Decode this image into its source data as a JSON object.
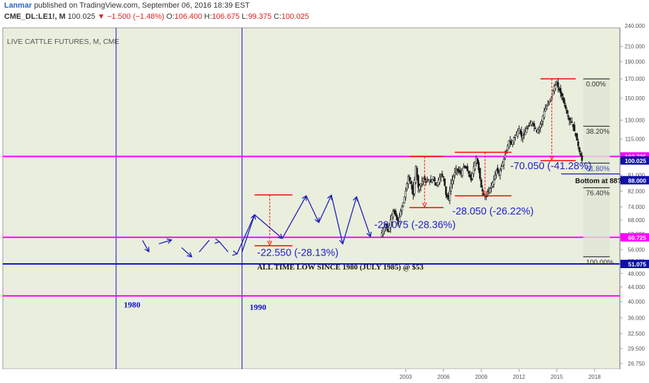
{
  "header": {
    "author": "Lanmar",
    "published": "published on TradingView.com, September 06, 2016 18:39 EST",
    "symbol": "CME_DL:LE1!, M",
    "last": "100.025",
    "change": "▼ −1.500 (−1.48%)",
    "o_label": "O:",
    "o_value": "106.400",
    "h_label": "H:",
    "h_value": "106.675",
    "l_label": "L:",
    "l_value": "99.375",
    "c_label": "C:",
    "c_value": "100.025"
  },
  "chart_title": "LIVE CATTLE FUTURES, M, CME",
  "colors": {
    "bg": "#e9eedd",
    "magenta": "#ff00ff",
    "blue": "#1212c8",
    "red": "#ff0000",
    "candle": "#1a1a1a",
    "fib": "#6b7280",
    "axis_text": "#555555"
  },
  "chart_data": {
    "type": "candlestick",
    "scale": "log",
    "ylim": [
      26.75,
      240
    ],
    "yticks": [
      26.75,
      29.5,
      32.5,
      36,
      40,
      44,
      48,
      52,
      56,
      62,
      68,
      74,
      82,
      91,
      100,
      115,
      130,
      150,
      170,
      190,
      210
    ],
    "ytick_labels": [
      "26.750",
      "29.500",
      "32.500",
      "36.000",
      "40.000",
      "44.000",
      "48.000",
      "52.000",
      "56.000",
      "62.000",
      "68.000",
      "74.000",
      "82.000",
      "91.000",
      "100.000",
      "115.000",
      "130.000",
      "150.000",
      "170.000",
      "190.000",
      "210.000"
    ],
    "top_axis_label": "240.000",
    "x_start": 1971.0,
    "x_end": 2020.0,
    "xticks": [
      2003,
      2006,
      2009,
      2012,
      2015,
      2018
    ],
    "xtick_labels": [
      "2003",
      "2006",
      "2009",
      "2012",
      "2015",
      "2018"
    ],
    "price_series": [
      [
        2001.0,
        61
      ],
      [
        2001.2,
        64
      ],
      [
        2001.4,
        66
      ],
      [
        2001.6,
        63
      ],
      [
        2001.8,
        68
      ],
      [
        2002.0,
        72
      ],
      [
        2002.2,
        70
      ],
      [
        2002.4,
        66
      ],
      [
        2002.6,
        72
      ],
      [
        2002.8,
        76
      ],
      [
        2003.0,
        82
      ],
      [
        2003.2,
        90
      ],
      [
        2003.4,
        86
      ],
      [
        2003.6,
        80
      ],
      [
        2003.8,
        96
      ],
      [
        2004.0,
        84
      ],
      [
        2004.2,
        86
      ],
      [
        2004.4,
        89
      ],
      [
        2004.6,
        87
      ],
      [
        2004.8,
        88
      ],
      [
        2005.0,
        87
      ],
      [
        2005.2,
        90
      ],
      [
        2005.4,
        85
      ],
      [
        2005.6,
        88
      ],
      [
        2005.8,
        91
      ],
      [
        2006.0,
        90
      ],
      [
        2006.2,
        80
      ],
      [
        2006.4,
        78
      ],
      [
        2006.6,
        86
      ],
      [
        2006.8,
        90
      ],
      [
        2007.0,
        95
      ],
      [
        2007.2,
        93
      ],
      [
        2007.4,
        92
      ],
      [
        2007.6,
        96
      ],
      [
        2007.8,
        95
      ],
      [
        2008.0,
        92
      ],
      [
        2008.2,
        88
      ],
      [
        2008.4,
        96
      ],
      [
        2008.6,
        102
      ],
      [
        2008.8,
        94
      ],
      [
        2009.0,
        84
      ],
      [
        2009.2,
        80
      ],
      [
        2009.4,
        79
      ],
      [
        2009.6,
        82
      ],
      [
        2009.8,
        85
      ],
      [
        2010.0,
        88
      ],
      [
        2010.2,
        94
      ],
      [
        2010.4,
        92
      ],
      [
        2010.6,
        96
      ],
      [
        2010.8,
        101
      ],
      [
        2011.0,
        106
      ],
      [
        2011.2,
        114
      ],
      [
        2011.4,
        111
      ],
      [
        2011.6,
        116
      ],
      [
        2011.8,
        119
      ],
      [
        2012.0,
        123
      ],
      [
        2012.2,
        117
      ],
      [
        2012.4,
        118
      ],
      [
        2012.6,
        123
      ],
      [
        2012.8,
        125
      ],
      [
        2013.0,
        129
      ],
      [
        2013.2,
        125
      ],
      [
        2013.4,
        121
      ],
      [
        2013.6,
        124
      ],
      [
        2013.8,
        129
      ],
      [
        2014.0,
        138
      ],
      [
        2014.2,
        142
      ],
      [
        2014.4,
        147
      ],
      [
        2014.6,
        152
      ],
      [
        2014.8,
        162
      ],
      [
        2015.0,
        164
      ],
      [
        2015.2,
        158
      ],
      [
        2015.4,
        152
      ],
      [
        2015.6,
        145
      ],
      [
        2015.8,
        136
      ],
      [
        2016.0,
        130
      ],
      [
        2016.2,
        128
      ],
      [
        2016.4,
        121
      ],
      [
        2016.6,
        114
      ],
      [
        2016.8,
        106
      ],
      [
        2017.0,
        100
      ]
    ],
    "horizontal_lines": [
      {
        "name": "magenta-line-102",
        "y": 102.725,
        "color": "magenta"
      },
      {
        "name": "magenta-line-60",
        "y": 60.725,
        "color": "magenta"
      },
      {
        "name": "magenta-line-41",
        "y": 41.5,
        "color": "magenta"
      },
      {
        "name": "blue-line-51",
        "y": 51.075,
        "color": "blue"
      }
    ],
    "vertical_lines": [
      1980,
      1990
    ],
    "year_labels": [
      {
        "text": "1980",
        "x": 1980.6,
        "y": 38.5
      },
      {
        "text": "1990",
        "x": 1990.6,
        "y": 37.9
      }
    ],
    "fib_levels": [
      {
        "pct": "0.00%",
        "y": 170
      },
      {
        "pct": "38.20%",
        "y": 125
      },
      {
        "pct": "61.80%",
        "y": 98.3
      },
      {
        "pct": "76.40%",
        "y": 83.8
      },
      {
        "pct": "100.00%",
        "y": 53.5
      }
    ],
    "fib_x_range": [
      2017.1,
      2019.2
    ],
    "measurements": [
      {
        "label": "-22.550 (-28.13%)",
        "x1": 1991.0,
        "x2": 1994.0,
        "x_mark": 1992.2,
        "y_top": 80,
        "y_bottom": 57.5,
        "label_x": 1991.2,
        "label_y": 53.8
      },
      {
        "label": "-29.075 (-28.36%)",
        "x1": 2003.3,
        "x2": 2006.0,
        "x_mark": 2004.5,
        "y_top": 102.725,
        "y_bottom": 73.65,
        "label_x": 2000.5,
        "label_y": 64.5
      },
      {
        "label": "-28.050 (-26.22%)",
        "x1": 2006.9,
        "x2": 2011.4,
        "x_mark": 2009.3,
        "y_top": 105.5,
        "y_bottom": 79.5,
        "label_x": 2006.7,
        "label_y": 70.5
      },
      {
        "label": "-70.050 (-41.28%)",
        "x1": 2013.7,
        "x2": 2016.5,
        "x_mark": 2014.6,
        "y_top": 170,
        "y_bottom": 99.95,
        "label_x": 2011.3,
        "label_y": 94.5
      }
    ],
    "sketch_points": [
      [
        1982.1,
        59.5
      ],
      [
        1982.6,
        55.3
      ],
      [
        1983.4,
        58.2
      ],
      [
        1984.4,
        59.7
      ],
      [
        1985.2,
        56.8
      ],
      [
        1986.0,
        53.5
      ],
      [
        1986.6,
        55.2
      ],
      [
        1987.4,
        59.6
      ],
      [
        1988.2,
        59.0
      ],
      [
        1988.9,
        55.2
      ],
      [
        1989.6,
        54.5
      ],
      [
        1991.0,
        70.3
      ],
      [
        1992.1,
        65.1
      ],
      [
        1993.2,
        60.3
      ],
      [
        1995.1,
        79.5
      ],
      [
        1996.1,
        66.9
      ],
      [
        1997.1,
        79.8
      ],
      [
        1998.0,
        58.2
      ],
      [
        1999.1,
        79.0
      ],
      [
        2000.2,
        61.0
      ]
    ],
    "arrow_heads": [
      {
        "at": [
          1982.6,
          55.3
        ],
        "from": [
          1982.1,
          59.5
        ]
      },
      {
        "at": [
          1984.4,
          59.7
        ],
        "from": [
          1983.4,
          58.2
        ]
      },
      {
        "at": [
          1986.0,
          53.5
        ],
        "from": [
          1985.2,
          56.8
        ]
      },
      {
        "at": [
          1988.2,
          59.0
        ],
        "from": [
          1987.4,
          59.6
        ]
      },
      {
        "at": [
          1989.6,
          54.5
        ],
        "from": [
          1988.9,
          55.2
        ]
      },
      {
        "at": [
          1991.0,
          70.3
        ],
        "from": [
          1990.0,
          55.2
        ]
      },
      {
        "at": [
          1993.2,
          60.3
        ],
        "from": [
          1992.1,
          65.1
        ]
      },
      {
        "at": [
          1995.1,
          79.5
        ],
        "from": [
          1993.2,
          60.3
        ]
      },
      {
        "at": [
          1996.1,
          66.9
        ],
        "from": [
          1995.1,
          79.5
        ]
      },
      {
        "at": [
          1997.1,
          79.8
        ],
        "from": [
          1996.1,
          66.9
        ]
      },
      {
        "at": [
          1998.0,
          58.2
        ],
        "from": [
          1997.1,
          79.8
        ]
      },
      {
        "at": [
          1999.1,
          79.0
        ],
        "from": [
          1998.0,
          58.2
        ]
      },
      {
        "at": [
          2000.2,
          61.0
        ],
        "from": [
          1999.1,
          79.0
        ]
      }
    ],
    "sketch_first_arrow": {
      "from": [
        1990.0,
        55.2
      ],
      "to": [
        1991.0,
        70.3
      ]
    }
  },
  "annotations": {
    "all_time_low": "ALL TIME LOW SINCE 1980 (JULY 1985) @ $53",
    "bottom_question": "Bottom at 88?"
  },
  "price_badges": {
    "magenta_top": "102.725",
    "last_price": "100.025",
    "bottom_88": "88.000",
    "magenta_low": "60.725",
    "blue_low": "51.075"
  }
}
